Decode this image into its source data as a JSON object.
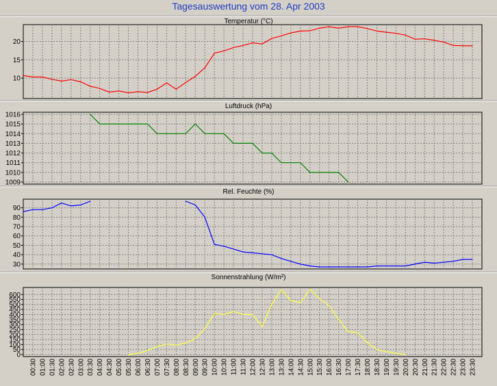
{
  "title": "Tagesauswertung vom 28. Apr 2003",
  "x_ticks": [
    "00:30",
    "01:00",
    "01:30",
    "02:00",
    "02:30",
    "03:00",
    "03:30",
    "04:00",
    "04:30",
    "05:00",
    "05:30",
    "06:00",
    "06:30",
    "07:00",
    "07:30",
    "08:00",
    "08:30",
    "09:00",
    "09:30",
    "10:00",
    "10:30",
    "11:00",
    "11:30",
    "12:00",
    "12:30",
    "13:00",
    "13:30",
    "14:00",
    "14:30",
    "15:00",
    "15:30",
    "16:00",
    "16:30",
    "17:00",
    "17:30",
    "18:00",
    "18:30",
    "19:00",
    "19:30",
    "20:00",
    "20:30",
    "21:00",
    "21:30",
    "22:00",
    "22:30",
    "23:00",
    "23:30"
  ],
  "chart_data": [
    {
      "type": "line",
      "title": "Temperatur (°C)",
      "color": "#ff0000",
      "ylim": [
        5,
        24
      ],
      "yticks": [
        10,
        15,
        20
      ],
      "grid": true,
      "x": [
        "00:00",
        "00:30",
        "01:00",
        "01:30",
        "02:00",
        "02:30",
        "03:00",
        "03:30",
        "04:00",
        "04:30",
        "05:00",
        "05:30",
        "06:00",
        "06:30",
        "07:00",
        "07:30",
        "08:00",
        "08:30",
        "09:00",
        "09:30",
        "10:00",
        "10:30",
        "11:00",
        "11:30",
        "12:00",
        "12:30",
        "13:00",
        "13:30",
        "14:00",
        "14:30",
        "15:00",
        "15:30",
        "16:00",
        "16:30",
        "17:00",
        "17:30",
        "18:00",
        "18:30",
        "19:00",
        "19:30",
        "20:00",
        "20:30",
        "21:00",
        "21:30",
        "22:00",
        "22:30",
        "23:00",
        "23:30"
      ],
      "values": [
        10.7,
        10.3,
        10.3,
        9.7,
        9.2,
        9.6,
        9.0,
        7.8,
        7.2,
        6.2,
        6.5,
        6.0,
        6.3,
        6.1,
        7.0,
        8.7,
        7.0,
        8.8,
        10.5,
        12.8,
        16.8,
        17.4,
        18.3,
        18.9,
        19.6,
        19.3,
        20.8,
        21.5,
        22.3,
        22.8,
        22.9,
        23.6,
        24.0,
        23.6,
        24.0,
        24.0,
        23.5,
        22.8,
        22.5,
        22.2,
        21.7,
        20.6,
        20.7,
        20.3,
        19.8,
        18.9,
        18.8,
        18.8
      ]
    },
    {
      "type": "line",
      "title": "Luftdruck (hPa)",
      "color": "#008000",
      "ylim": [
        1009,
        1016
      ],
      "yticks": [
        1009,
        1010,
        1011,
        1012,
        1013,
        1014,
        1015,
        1016
      ],
      "grid": true,
      "x": [
        "03:30",
        "04:00",
        "04:30",
        "05:00",
        "05:30",
        "06:00",
        "06:30",
        "07:00",
        "07:30",
        "08:00",
        "08:30",
        "09:00",
        "09:30",
        "10:00",
        "10:30",
        "11:00",
        "11:30",
        "12:00",
        "12:30",
        "13:00",
        "13:30",
        "14:00",
        "14:30",
        "15:00",
        "15:30",
        "16:00",
        "16:30",
        "17:00"
      ],
      "values": [
        1016,
        1015,
        1015,
        1015,
        1015,
        1015,
        1015,
        1014,
        1014,
        1014,
        1014,
        1015,
        1014,
        1014,
        1014,
        1013,
        1013,
        1013,
        1012,
        1012,
        1011,
        1011,
        1011,
        1010,
        1010,
        1010,
        1010,
        1009
      ]
    },
    {
      "type": "line",
      "title": "Rel. Feuchte (%)",
      "color": "#0000ff",
      "ylim": [
        27,
        97
      ],
      "yticks": [
        30,
        40,
        50,
        60,
        70,
        80,
        90
      ],
      "grid": true,
      "x": [
        "00:00",
        "00:30",
        "01:00",
        "01:30",
        "02:00",
        "02:30",
        "03:00",
        "03:30",
        "04:00",
        "04:30",
        "05:00",
        "05:30",
        "06:00",
        "06:30",
        "07:00",
        "07:30",
        "08:00",
        "08:30",
        "09:00",
        "09:30",
        "10:00",
        "10:30",
        "11:00",
        "11:30",
        "12:00",
        "12:30",
        "13:00",
        "13:30",
        "14:00",
        "14:30",
        "15:00",
        "15:30",
        "16:00",
        "16:30",
        "17:00",
        "17:30",
        "18:00",
        "18:30",
        "19:00",
        "19:30",
        "20:00",
        "20:30",
        "21:00",
        "21:30",
        "22:00",
        "22:30",
        "23:00",
        "23:30"
      ],
      "values": [
        86,
        88,
        88,
        90,
        95,
        92,
        93,
        97,
        null,
        null,
        null,
        null,
        null,
        null,
        null,
        null,
        null,
        97,
        93,
        80,
        51,
        49,
        46,
        43,
        42,
        41,
        40,
        36,
        33,
        30,
        28,
        27,
        27,
        27,
        27,
        27,
        27,
        28,
        28,
        28,
        28,
        30,
        32,
        31,
        32,
        33,
        35,
        35
      ]
    },
    {
      "type": "line",
      "title": "Sonnenstrahlung (W/m²)",
      "color": "#ffff40",
      "ylim": [
        0,
        650
      ],
      "yticks": [
        0,
        50,
        100,
        150,
        200,
        250,
        300,
        350,
        400,
        450,
        500,
        550,
        600
      ],
      "grid": true,
      "x": [
        "05:30",
        "06:00",
        "06:30",
        "07:00",
        "07:30",
        "08:00",
        "08:30",
        "09:00",
        "09:30",
        "10:00",
        "10:30",
        "11:00",
        "11:30",
        "12:00",
        "12:30",
        "13:00",
        "13:30",
        "14:00",
        "14:30",
        "15:00",
        "15:30",
        "16:00",
        "16:30",
        "17:00",
        "17:30",
        "18:00",
        "18:30",
        "19:00",
        "19:30",
        "20:00"
      ],
      "values": [
        0,
        10,
        40,
        80,
        105,
        95,
        115,
        160,
        260,
        410,
        400,
        430,
        400,
        400,
        280,
        500,
        650,
        540,
        520,
        650,
        560,
        490,
        350,
        230,
        220,
        120,
        50,
        30,
        10,
        0
      ]
    }
  ]
}
